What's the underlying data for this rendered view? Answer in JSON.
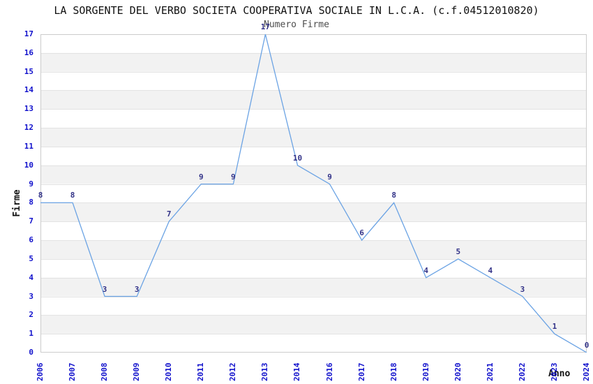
{
  "chart_data": {
    "type": "line",
    "title": "LA SORGENTE DEL VERBO SOCIETA COOPERATIVA SOCIALE IN L.C.A. (c.f.04512010820)",
    "subtitle": "Numero Firme",
    "xlabel": "Anno",
    "ylabel": "Firme",
    "categories": [
      "2006",
      "2007",
      "2008",
      "2009",
      "2010",
      "2011",
      "2012",
      "2013",
      "2014",
      "2016",
      "2017",
      "2018",
      "2019",
      "2020",
      "2021",
      "2022",
      "2023",
      "2024"
    ],
    "values": [
      8,
      8,
      3,
      3,
      7,
      9,
      9,
      17,
      10,
      9,
      6,
      8,
      4,
      5,
      4,
      3,
      1,
      0
    ],
    "y_ticks": [
      0,
      1,
      2,
      3,
      4,
      5,
      6,
      7,
      8,
      9,
      10,
      11,
      12,
      13,
      14,
      15,
      16,
      17
    ],
    "ylim": [
      0,
      17
    ],
    "show_point_labels": true,
    "grid": "horizontal gridlines with alternating shaded bands",
    "legend_position": "none",
    "colors": {
      "line": "#6ba3e4",
      "point_label": "#333388",
      "tick_label": "#1111cc",
      "band": "#f2f2f2",
      "gridline": "#e3e3e3",
      "plot_border": "#cccccc",
      "title": "#111111",
      "subtitle": "#4d4d4d",
      "axis_label": "#111111"
    }
  }
}
